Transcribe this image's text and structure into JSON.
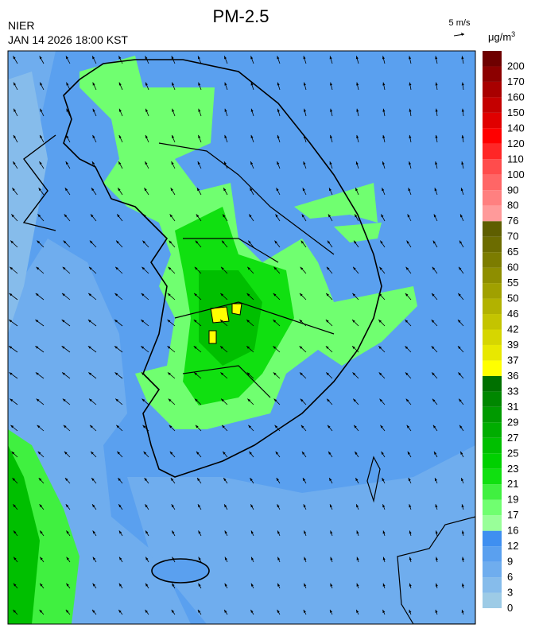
{
  "header": {
    "title": "PM-2.5",
    "agency": "NIER",
    "timestamp": "JAN 14 2026 18:00 KST",
    "wind_scale": "5 m/s"
  },
  "legend": {
    "unit": "μg/m",
    "unit_exponent": "3",
    "levels": [
      0,
      3,
      6,
      9,
      12,
      16,
      17,
      19,
      21,
      23,
      25,
      27,
      29,
      31,
      33,
      36,
      37,
      39,
      42,
      46,
      50,
      55,
      60,
      65,
      70,
      76,
      80,
      90,
      100,
      110,
      120,
      140,
      150,
      160,
      170,
      200
    ],
    "colors": [
      "#9dcbe6",
      "#86bceb",
      "#6fadee",
      "#5aa0ef",
      "#3f8ff0",
      "#99ff99",
      "#70ff70",
      "#40f040",
      "#10e010",
      "#00d000",
      "#00bf00",
      "#00ad00",
      "#009a00",
      "#008700",
      "#007000",
      "#ffff00",
      "#e8e800",
      "#d6d600",
      "#c4c400",
      "#b2b200",
      "#a0a000",
      "#8e8e00",
      "#7c7c00",
      "#6c6c00",
      "#5e5e00",
      "#ff9a9a",
      "#ff8080",
      "#ff6666",
      "#ff4c4c",
      "#ff2626",
      "#ff0000",
      "#e00000",
      "#c40000",
      "#a80000",
      "#8c0000",
      "#6e0000"
    ]
  }
}
